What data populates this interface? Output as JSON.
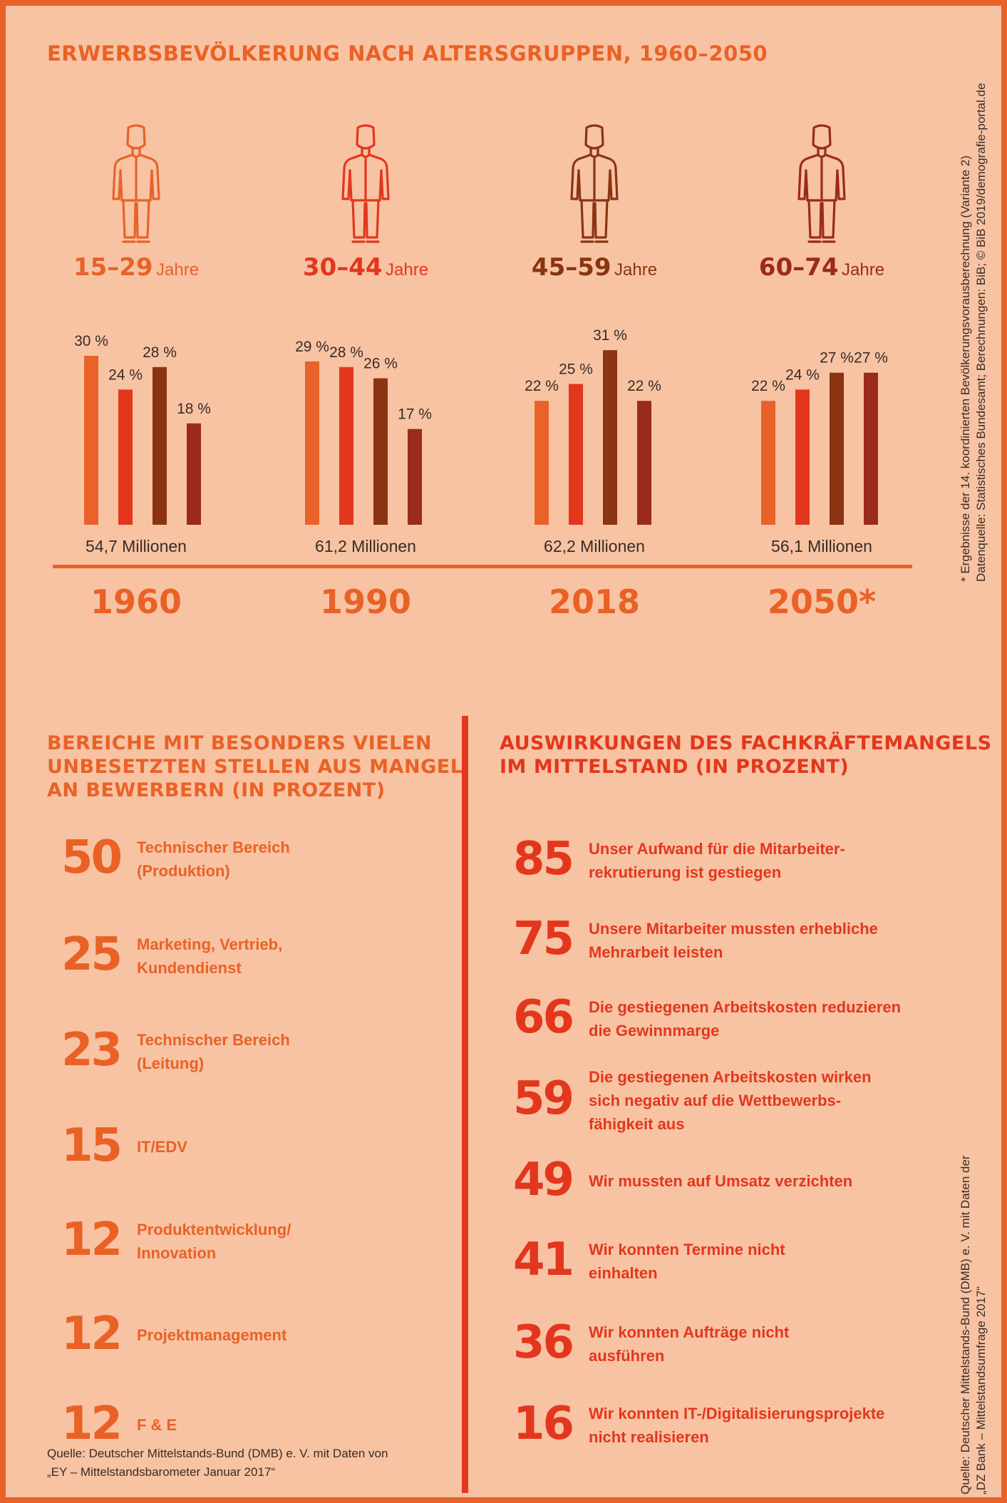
{
  "chart_title": "ERWERBSBEVÖLKERUNG NACH ALTERSGRUPPEN, 1960–2050",
  "age_groups": [
    {
      "label": "15–29",
      "unit": "Jahre",
      "color": "#e8622a",
      "icon": "person-young-icon"
    },
    {
      "label": "30–44",
      "unit": "Jahre",
      "color": "#e3371d",
      "icon": "person-adult-icon"
    },
    {
      "label": "45–59",
      "unit": "Jahre",
      "color": "#8b3412",
      "icon": "person-middle-aged-icon"
    },
    {
      "label": "60–74",
      "unit": "Jahre",
      "color": "#9b2a1c",
      "icon": "person-senior-icon"
    }
  ],
  "chart_data": {
    "type": "bar",
    "title": "ERWERBSBEVÖLKERUNG NACH ALTERSGRUPPEN, 1960–2050",
    "categories": [
      "1960",
      "1990",
      "2018",
      "2050*"
    ],
    "totals": [
      "54,7 Millionen",
      "61,2 Millionen",
      "62,2 Millionen",
      "56,1 Millionen"
    ],
    "series": [
      {
        "name": "15–29 Jahre",
        "values": [
          30,
          29,
          22,
          22
        ],
        "labels": [
          "30 %",
          "29 %",
          "22 %",
          "22 %"
        ],
        "color": "#e8622a"
      },
      {
        "name": "30–44 Jahre",
        "values": [
          24,
          28,
          25,
          24
        ],
        "labels": [
          "24 %",
          "28 %",
          "25 %",
          "24 %"
        ],
        "color": "#e3371d"
      },
      {
        "name": "45–59 Jahre",
        "values": [
          28,
          26,
          31,
          27
        ],
        "labels": [
          "28 %",
          "26 %",
          "31 %",
          "27 %"
        ],
        "color": "#8b3412"
      },
      {
        "name": "60–74 Jahre",
        "values": [
          18,
          17,
          22,
          27
        ],
        "labels": [
          "18 %",
          "17 %",
          "22 %",
          "27 %"
        ],
        "color": "#9b2a1c"
      }
    ],
    "ylim": [
      0,
      35
    ],
    "grid": false
  },
  "side_note": [
    "* Ergebnisse der 14. koordinierten Bevölkerungsvorausberechnung (Variante 2)",
    "Datenquelle: Statistisches Bundesamt; Berechnungen: BiB; © BiB 2019/demografie-portal.de"
  ],
  "left_section": {
    "title": [
      "BEREICHE MIT BESONDERS VIELEN",
      "UNBESETZTEN STELLEN AUS MANGEL",
      "AN BEWERBERN (IN PROZENT)"
    ],
    "items": [
      {
        "value": "50",
        "text": [
          "Technischer Bereich",
          "(Produktion)"
        ]
      },
      {
        "value": "25",
        "text": [
          "Marketing, Vertrieb,",
          "Kundendienst"
        ]
      },
      {
        "value": "23",
        "text": [
          "Technischer Bereich",
          "(Leitung)"
        ]
      },
      {
        "value": "15",
        "text": [
          "IT/EDV"
        ]
      },
      {
        "value": "12",
        "text": [
          "Produktentwicklung/",
          "Innovation"
        ]
      },
      {
        "value": "12",
        "text": [
          "Projektmanagement"
        ]
      },
      {
        "value": "12",
        "text": [
          "F & E"
        ]
      }
    ],
    "source": [
      "Quelle: Deutscher Mittelstands-Bund (DMB) e. V. mit Daten von",
      "„EY – Mittelstandsbarometer Januar 2017“"
    ]
  },
  "right_section": {
    "title": [
      "AUSWIRKUNGEN DES FACHKRÄFTEMANGELS",
      "IM MITTELSTAND (IN PROZENT)"
    ],
    "items": [
      {
        "value": "85",
        "text": [
          "Unser Aufwand für die Mitarbeiter-",
          "rekrutierung ist gestiegen"
        ]
      },
      {
        "value": "75",
        "text": [
          "Unsere Mitarbeiter mussten erhebliche",
          "Mehrarbeit leisten"
        ]
      },
      {
        "value": "66",
        "text": [
          "Die gestiegenen Arbeitskosten reduzieren",
          "die Gewinnmarge"
        ]
      },
      {
        "value": "59",
        "text": [
          "Die gestiegenen Arbeitskosten wirken",
          "sich negativ auf die Wettbewerbs-",
          "fähigkeit aus"
        ]
      },
      {
        "value": "49",
        "text": [
          "Wir mussten auf Umsatz verzichten"
        ]
      },
      {
        "value": "41",
        "text": [
          "Wir konnten Termine nicht",
          "einhalten"
        ]
      },
      {
        "value": "36",
        "text": [
          "Wir konnten Aufträge nicht",
          "ausführen"
        ]
      },
      {
        "value": "16",
        "text": [
          "Wir konnten IT-/Digitalisierungsprojekte",
          "nicht realisieren"
        ]
      }
    ],
    "source": [
      "Quelle: Deutscher Mittelstands-Bund (DMB) e. V. mit Daten der",
      "„DZ Bank – Mittelstandsumfrage 2017“"
    ]
  },
  "colors": {
    "background": "#f7c3a3",
    "frame": "#e8622a",
    "accent": "#ea6126",
    "red": "#e3371d",
    "text": "#3a2b25"
  }
}
